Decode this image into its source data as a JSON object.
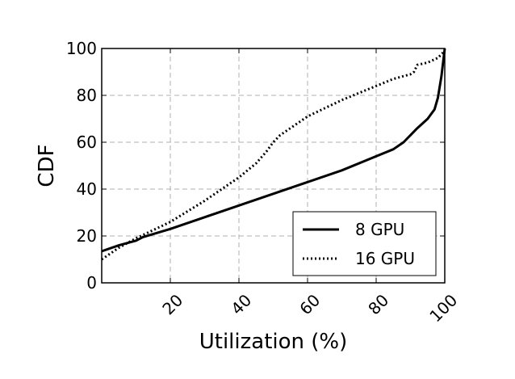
{
  "chart_data": {
    "type": "line",
    "title": "",
    "xlabel": "Utilization (%)",
    "ylabel": "CDF",
    "xlim": [
      0,
      100
    ],
    "ylim": [
      0,
      100
    ],
    "xticks": [
      20,
      40,
      60,
      80,
      100
    ],
    "yticks": [
      0,
      20,
      40,
      60,
      80,
      100
    ],
    "grid": true,
    "legend_position": "lower-right",
    "series": [
      {
        "name": "8 GPU",
        "style": "solid",
        "color": "#000000",
        "x": [
          0,
          5,
          10,
          12,
          20,
          30,
          40,
          50,
          60,
          70,
          80,
          85,
          88,
          90,
          92,
          95,
          97,
          98,
          99,
          99.5,
          100
        ],
        "y": [
          13.5,
          16,
          18,
          19.5,
          23,
          28,
          33,
          38,
          43,
          48,
          54,
          57,
          60,
          63,
          66,
          70,
          74,
          79,
          88,
          94,
          100
        ]
      },
      {
        "name": "16 GPU",
        "style": "dotted",
        "color": "#000000",
        "x": [
          0,
          5,
          10,
          20,
          30,
          40,
          45,
          48,
          50,
          52,
          55,
          60,
          70,
          80,
          85,
          90,
          91,
          92,
          95,
          98,
          100
        ],
        "y": [
          10,
          15,
          19,
          26,
          35,
          45,
          51,
          56,
          60,
          63,
          66,
          71,
          78,
          84,
          87,
          89,
          90,
          93,
          94,
          96,
          99
        ]
      }
    ]
  }
}
